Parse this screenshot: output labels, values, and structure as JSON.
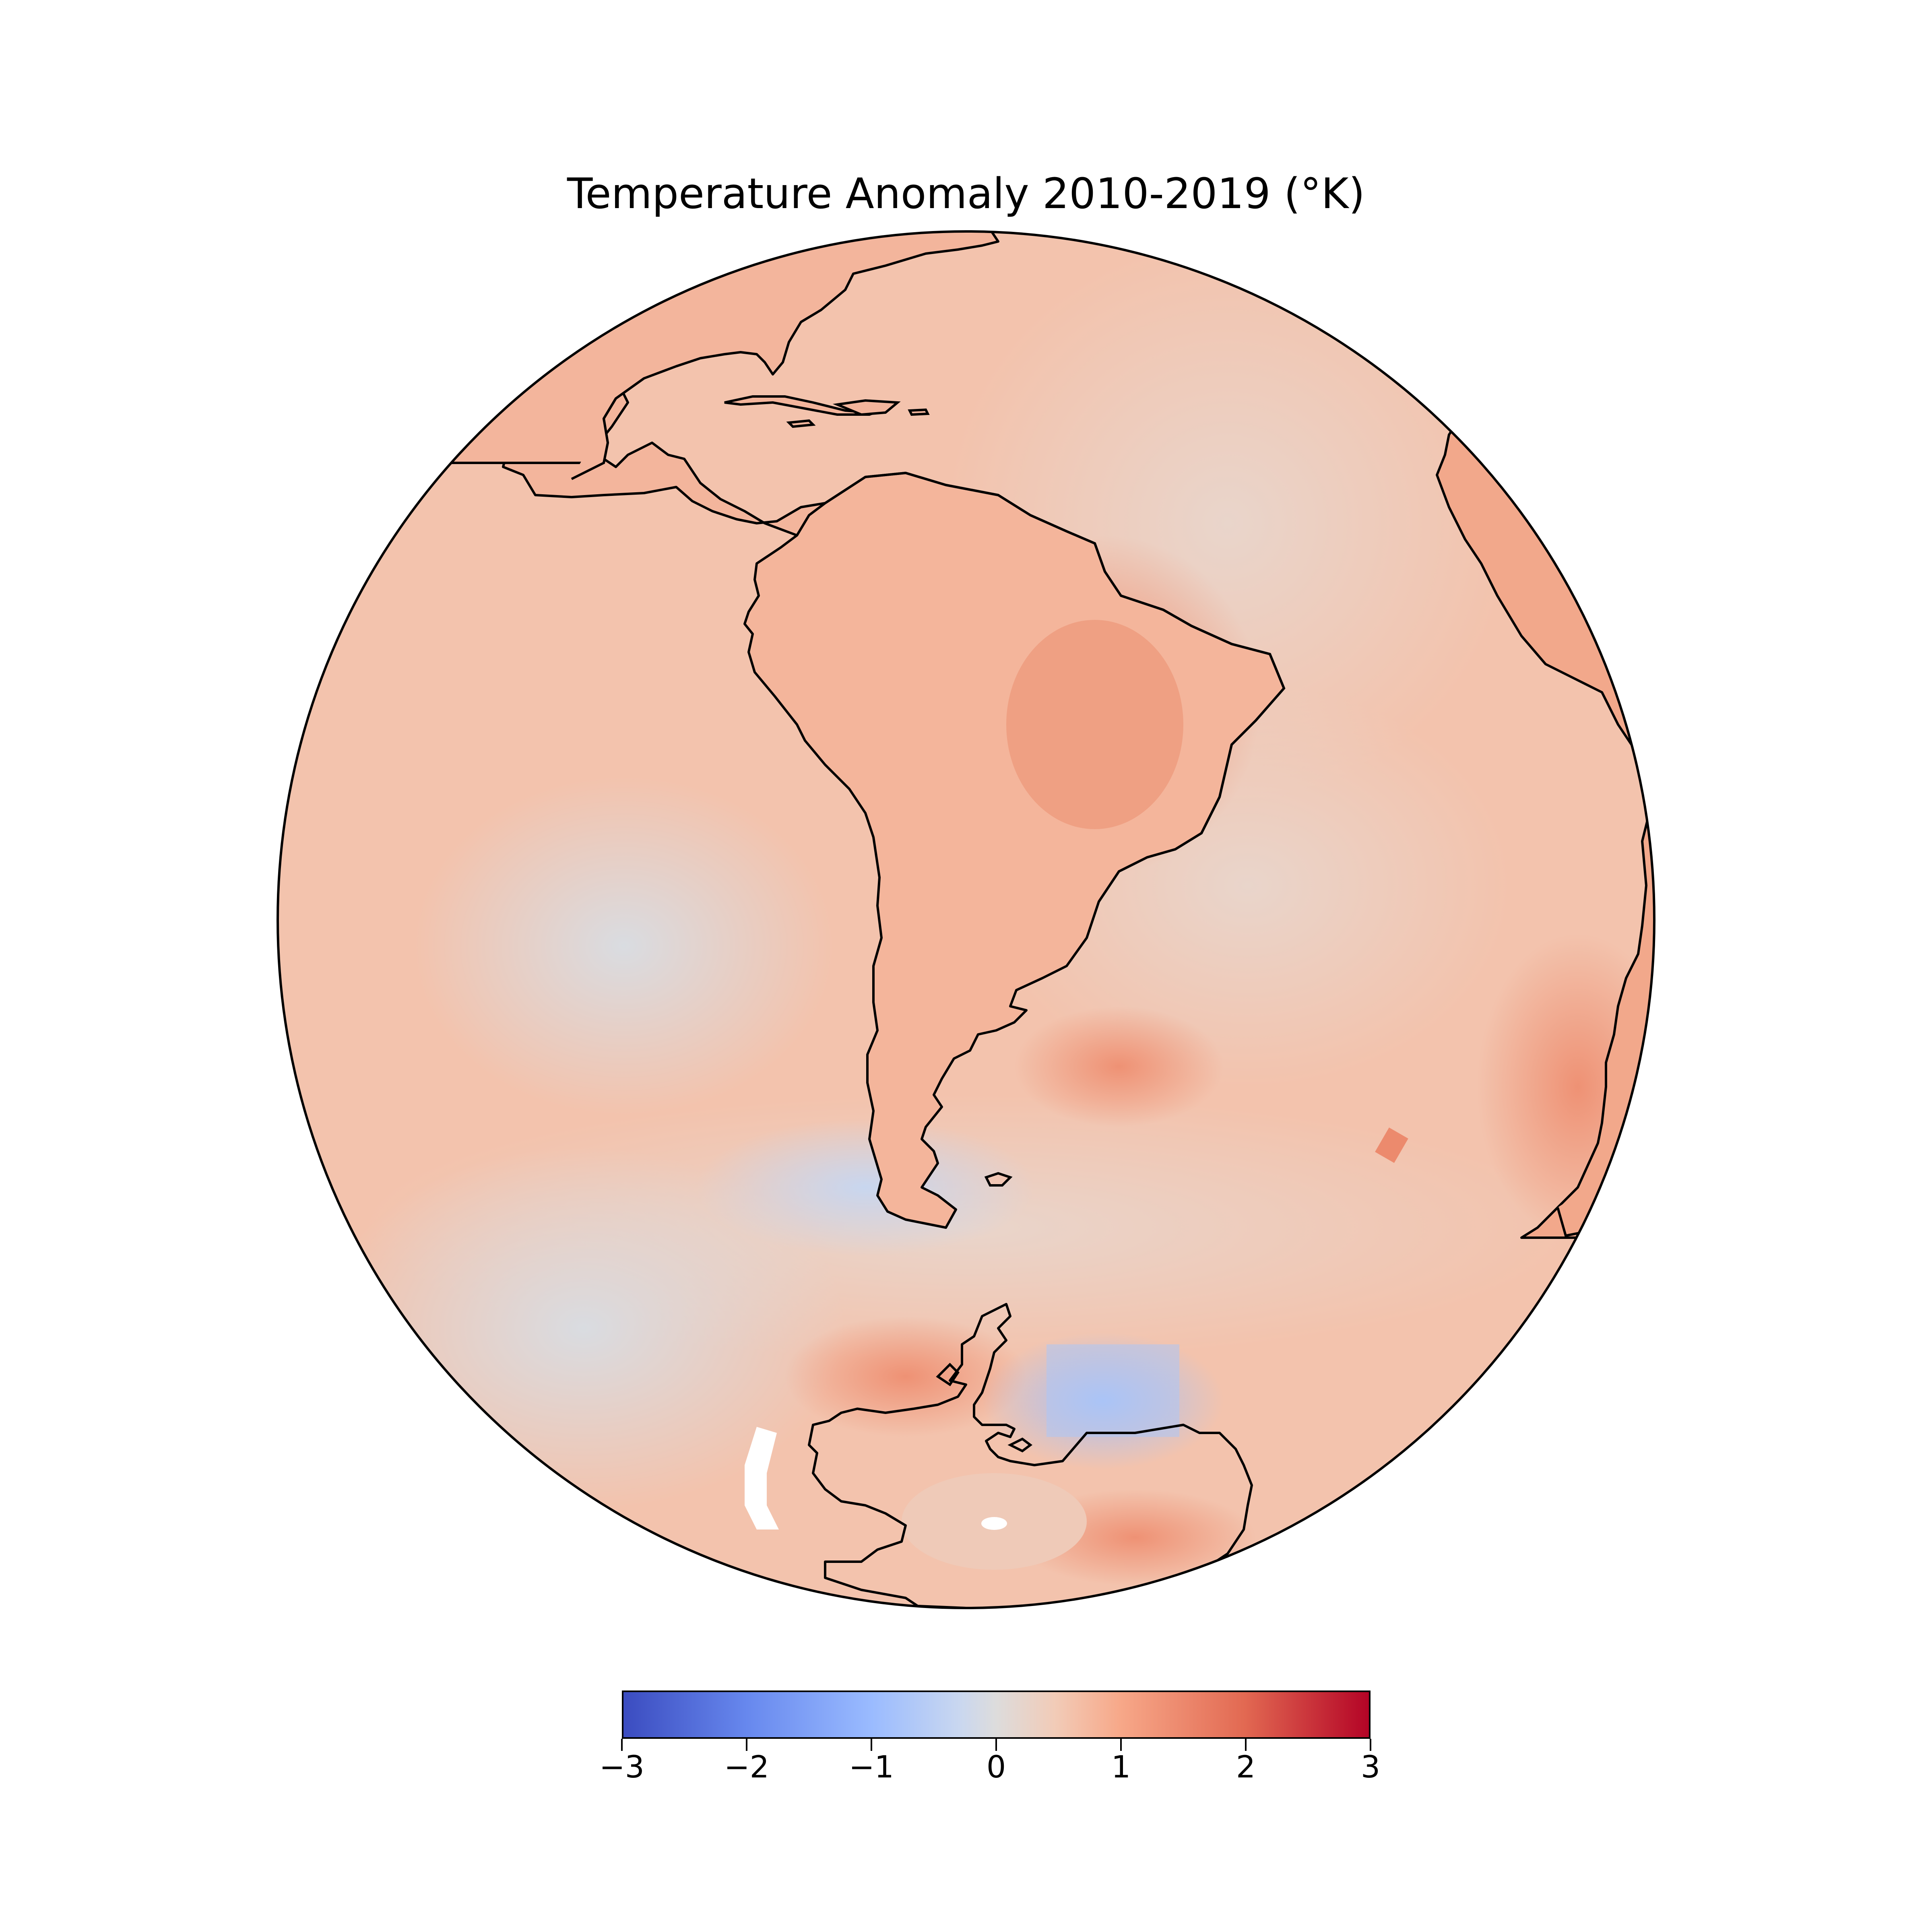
{
  "title": "Temperature Anomaly 2010-2019 (°K)",
  "map": {
    "projection": "orthographic",
    "central_view": "South America, South Atlantic and Antarctica",
    "coastline_color": "#000000"
  },
  "colorbar": {
    "colormap": "coolwarm",
    "min": -3,
    "max": 3,
    "tick_values": [
      -3,
      -2,
      -1,
      0,
      1,
      2,
      3
    ],
    "tick_labels": [
      "−3",
      "−2",
      "−1",
      "0",
      "1",
      "2",
      "3"
    ],
    "colors": {
      "low": "#3b4cc0",
      "mid": "#dddcdc",
      "high": "#b40426"
    }
  },
  "regions": [
    {
      "name": "south-america-interior",
      "anomaly": 1.4
    },
    {
      "name": "brazil-east",
      "anomaly": 1.6
    },
    {
      "name": "south-pacific-west",
      "anomaly": 0.0
    },
    {
      "name": "drake-passage",
      "anomaly": -0.4
    },
    {
      "name": "weddell-sea",
      "anomaly": -1.2
    },
    {
      "name": "antarctic-peninsula",
      "anomaly": 1.5
    },
    {
      "name": "east-antarctica-coast",
      "anomaly": 1.6
    },
    {
      "name": "africa-west",
      "anomaly": 1.3
    },
    {
      "name": "south-atlantic",
      "anomaly": 0.9
    },
    {
      "name": "north-atlantic-caribbean",
      "anomaly": 0.9
    }
  ]
}
